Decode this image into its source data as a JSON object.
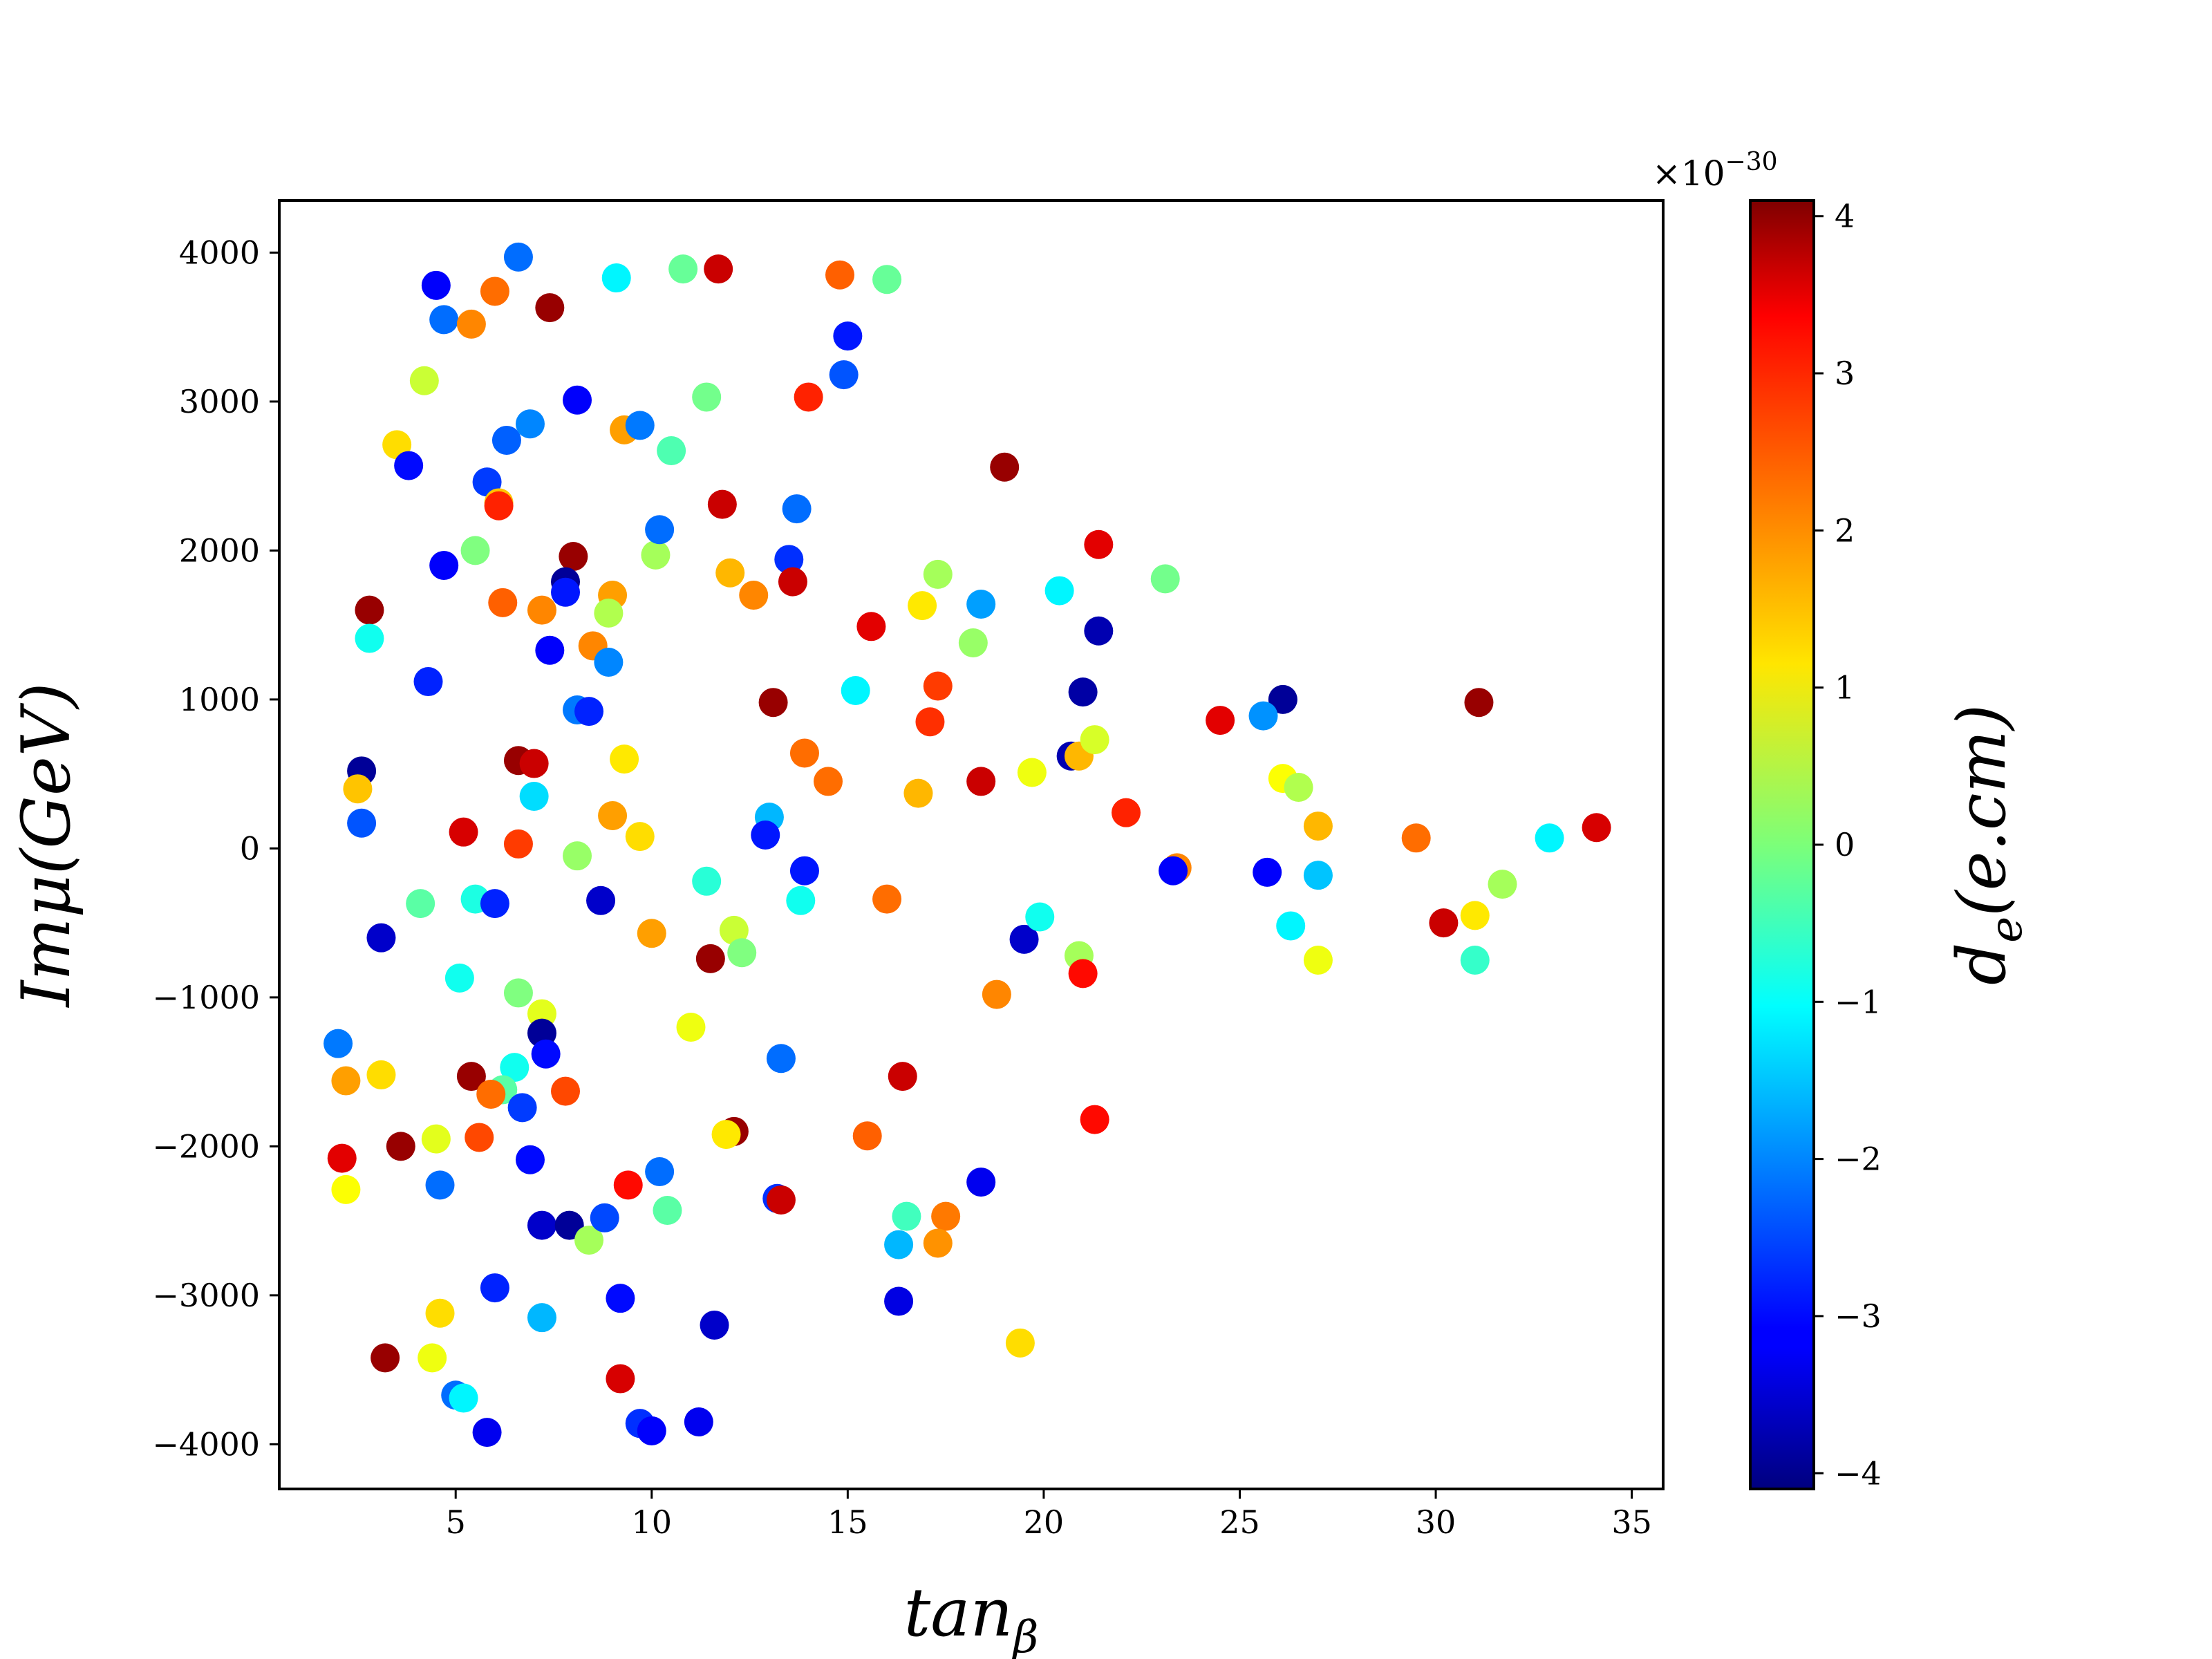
{
  "chart_data": {
    "type": "scatter",
    "title": "",
    "xlabel": "tan_β",
    "xlabel_parts": {
      "main": "tan",
      "sub": "β"
    },
    "ylabel": "Imμ(GeV)",
    "xlim": [
      0.5,
      35.8
    ],
    "ylim": [
      -4300,
      4350
    ],
    "xticks": [
      5,
      10,
      15,
      20,
      25,
      30,
      35
    ],
    "xtick_labels": [
      "5",
      "10",
      "15",
      "20",
      "25",
      "30",
      "35"
    ],
    "yticks": [
      4000,
      3000,
      2000,
      1000,
      0,
      -1000,
      -2000,
      -3000,
      -4000
    ],
    "ytick_labels": [
      "4000",
      "3000",
      "2000",
      "1000",
      "0",
      "−1000",
      "−2000",
      "−3000",
      "−4000"
    ],
    "grid": false,
    "legend": "none",
    "colorbar": {
      "label": "d_e(e.cm)",
      "label_parts": {
        "main": "d",
        "sub": "e",
        "rest": "(e.cm)"
      },
      "colormap": "jet",
      "range": [
        -4.1,
        4.1
      ],
      "ticks": [
        4,
        3,
        2,
        1,
        0,
        -1,
        -2,
        -3,
        -4
      ],
      "tick_labels": [
        "4",
        "3",
        "2",
        "1",
        "0",
        "−1",
        "−2",
        "−3",
        "−4"
      ],
      "multiplier": "×10−30",
      "multiplier_parts": {
        "base": "×10",
        "exp": "−30"
      }
    },
    "points": [
      {
        "x": 4.5,
        "y": 3780,
        "c": -3.1
      },
      {
        "x": 6.6,
        "y": 3970,
        "c": -2.2
      },
      {
        "x": 4.7,
        "y": 3550,
        "c": -2.2
      },
      {
        "x": 5.4,
        "y": 3520,
        "c": 2.0
      },
      {
        "x": 6.0,
        "y": 3740,
        "c": 2.2
      },
      {
        "x": 7.4,
        "y": 3630,
        "c": 3.9
      },
      {
        "x": 9.1,
        "y": 3830,
        "c": -1.1
      },
      {
        "x": 10.8,
        "y": 3890,
        "c": -0.2
      },
      {
        "x": 11.7,
        "y": 3890,
        "c": 3.5
      },
      {
        "x": 14.8,
        "y": 3850,
        "c": 2.3
      },
      {
        "x": 16.0,
        "y": 3820,
        "c": -0.2
      },
      {
        "x": 15.0,
        "y": 3440,
        "c": -2.9
      },
      {
        "x": 14.9,
        "y": 3180,
        "c": -2.4
      },
      {
        "x": 4.2,
        "y": 3140,
        "c": 0.6
      },
      {
        "x": 8.1,
        "y": 3010,
        "c": -3.1
      },
      {
        "x": 11.4,
        "y": 3030,
        "c": -0.1
      },
      {
        "x": 14.0,
        "y": 3030,
        "c": 2.8
      },
      {
        "x": 3.5,
        "y": 2710,
        "c": 1.3
      },
      {
        "x": 6.3,
        "y": 2740,
        "c": -2.3
      },
      {
        "x": 6.9,
        "y": 2850,
        "c": -2.0
      },
      {
        "x": 9.3,
        "y": 2810,
        "c": 1.8
      },
      {
        "x": 9.7,
        "y": 2840,
        "c": -2.1
      },
      {
        "x": 10.5,
        "y": 2670,
        "c": -0.4
      },
      {
        "x": 3.8,
        "y": 2570,
        "c": -3.0
      },
      {
        "x": 19.0,
        "y": 2560,
        "c": 3.9
      },
      {
        "x": 5.8,
        "y": 2460,
        "c": -2.6
      },
      {
        "x": 6.1,
        "y": 2320,
        "c": 1.5
      },
      {
        "x": 6.1,
        "y": 2300,
        "c": 2.8
      },
      {
        "x": 11.8,
        "y": 2310,
        "c": 3.5
      },
      {
        "x": 13.7,
        "y": 2280,
        "c": -2.2
      },
      {
        "x": 5.5,
        "y": 2000,
        "c": 0.0
      },
      {
        "x": 4.7,
        "y": 1900,
        "c": -3.1
      },
      {
        "x": 8.0,
        "y": 1960,
        "c": 3.9
      },
      {
        "x": 10.1,
        "y": 1970,
        "c": 0.3
      },
      {
        "x": 10.2,
        "y": 2140,
        "c": -2.2
      },
      {
        "x": 12.0,
        "y": 1850,
        "c": 1.6
      },
      {
        "x": 13.5,
        "y": 1940,
        "c": -2.7
      },
      {
        "x": 17.3,
        "y": 1840,
        "c": 0.3
      },
      {
        "x": 21.4,
        "y": 2040,
        "c": 3.3
      },
      {
        "x": 23.1,
        "y": 1810,
        "c": -0.1
      },
      {
        "x": 7.8,
        "y": 1790,
        "c": -3.9
      },
      {
        "x": 7.8,
        "y": 1720,
        "c": -2.9
      },
      {
        "x": 9.0,
        "y": 1700,
        "c": 1.8
      },
      {
        "x": 12.6,
        "y": 1700,
        "c": 2.0
      },
      {
        "x": 13.6,
        "y": 1790,
        "c": 3.5
      },
      {
        "x": 20.4,
        "y": 1730,
        "c": -1.1
      },
      {
        "x": 2.8,
        "y": 1600,
        "c": 3.9
      },
      {
        "x": 6.2,
        "y": 1650,
        "c": 2.3
      },
      {
        "x": 7.2,
        "y": 1600,
        "c": 2.0
      },
      {
        "x": 8.9,
        "y": 1580,
        "c": 0.4
      },
      {
        "x": 15.6,
        "y": 1490,
        "c": 3.3
      },
      {
        "x": 16.9,
        "y": 1630,
        "c": 1.2
      },
      {
        "x": 18.4,
        "y": 1640,
        "c": -1.8
      },
      {
        "x": 2.8,
        "y": 1410,
        "c": -0.9
      },
      {
        "x": 7.4,
        "y": 1330,
        "c": -3.1
      },
      {
        "x": 8.5,
        "y": 1360,
        "c": 2.0
      },
      {
        "x": 8.9,
        "y": 1250,
        "c": -2.0
      },
      {
        "x": 18.2,
        "y": 1380,
        "c": 0.2
      },
      {
        "x": 21.4,
        "y": 1460,
        "c": -3.7
      },
      {
        "x": 4.3,
        "y": 1120,
        "c": -2.8
      },
      {
        "x": 8.1,
        "y": 930,
        "c": -2.1
      },
      {
        "x": 8.4,
        "y": 920,
        "c": -2.8
      },
      {
        "x": 13.1,
        "y": 980,
        "c": 3.9
      },
      {
        "x": 15.2,
        "y": 1060,
        "c": -1.1
      },
      {
        "x": 17.3,
        "y": 1090,
        "c": 2.6
      },
      {
        "x": 21.0,
        "y": 1050,
        "c": -3.8
      },
      {
        "x": 26.1,
        "y": 1000,
        "c": -3.9
      },
      {
        "x": 31.1,
        "y": 980,
        "c": 3.9
      },
      {
        "x": 25.6,
        "y": 890,
        "c": -1.9
      },
      {
        "x": 24.5,
        "y": 860,
        "c": 3.3
      },
      {
        "x": 17.1,
        "y": 850,
        "c": 2.7
      },
      {
        "x": 2.6,
        "y": 520,
        "c": -3.9
      },
      {
        "x": 6.6,
        "y": 590,
        "c": 3.9
      },
      {
        "x": 7.0,
        "y": 570,
        "c": 3.5
      },
      {
        "x": 9.3,
        "y": 600,
        "c": 1.2
      },
      {
        "x": 13.9,
        "y": 640,
        "c": 2.2
      },
      {
        "x": 19.7,
        "y": 510,
        "c": 0.9
      },
      {
        "x": 20.7,
        "y": 620,
        "c": -3.7
      },
      {
        "x": 20.9,
        "y": 620,
        "c": 1.6
      },
      {
        "x": 21.3,
        "y": 730,
        "c": 0.7
      },
      {
        "x": 2.5,
        "y": 400,
        "c": 1.5
      },
      {
        "x": 7.0,
        "y": 350,
        "c": -1.3
      },
      {
        "x": 14.5,
        "y": 450,
        "c": 2.2
      },
      {
        "x": 16.8,
        "y": 370,
        "c": 1.6
      },
      {
        "x": 18.4,
        "y": 450,
        "c": 3.5
      },
      {
        "x": 26.1,
        "y": 470,
        "c": 1.0
      },
      {
        "x": 26.5,
        "y": 410,
        "c": 0.4
      },
      {
        "x": 2.6,
        "y": 170,
        "c": -2.4
      },
      {
        "x": 5.2,
        "y": 110,
        "c": 3.4
      },
      {
        "x": 6.6,
        "y": 30,
        "c": 2.6
      },
      {
        "x": 9.0,
        "y": 220,
        "c": 1.8
      },
      {
        "x": 9.7,
        "y": 80,
        "c": 1.3
      },
      {
        "x": 13.0,
        "y": 210,
        "c": -1.6
      },
      {
        "x": 12.9,
        "y": 90,
        "c": -2.9
      },
      {
        "x": 22.1,
        "y": 240,
        "c": 2.8
      },
      {
        "x": 27.0,
        "y": 150,
        "c": 1.6
      },
      {
        "x": 29.5,
        "y": 70,
        "c": 2.2
      },
      {
        "x": 32.9,
        "y": 70,
        "c": -1.1
      },
      {
        "x": 34.1,
        "y": 140,
        "c": 3.4
      },
      {
        "x": 23.4,
        "y": -130,
        "c": 2.0
      },
      {
        "x": 23.3,
        "y": -150,
        "c": -3.1
      },
      {
        "x": 25.7,
        "y": -160,
        "c": -3.1
      },
      {
        "x": 27.0,
        "y": -180,
        "c": -1.5
      },
      {
        "x": 13.9,
        "y": -150,
        "c": -2.9
      },
      {
        "x": 8.1,
        "y": -50,
        "c": 0.2
      },
      {
        "x": 4.1,
        "y": -370,
        "c": -0.3
      },
      {
        "x": 5.5,
        "y": -340,
        "c": -0.8
      },
      {
        "x": 6.0,
        "y": -370,
        "c": -2.8
      },
      {
        "x": 8.7,
        "y": -350,
        "c": -3.5
      },
      {
        "x": 11.4,
        "y": -220,
        "c": -0.7
      },
      {
        "x": 13.8,
        "y": -350,
        "c": -0.9
      },
      {
        "x": 16.0,
        "y": -340,
        "c": 2.2
      },
      {
        "x": 31.7,
        "y": -240,
        "c": 0.3
      },
      {
        "x": 3.1,
        "y": -600,
        "c": -3.5
      },
      {
        "x": 10.0,
        "y": -570,
        "c": 1.8
      },
      {
        "x": 12.1,
        "y": -550,
        "c": 0.6
      },
      {
        "x": 12.3,
        "y": -700,
        "c": 0.0
      },
      {
        "x": 11.5,
        "y": -740,
        "c": 3.9
      },
      {
        "x": 19.5,
        "y": -610,
        "c": -3.5
      },
      {
        "x": 19.9,
        "y": -460,
        "c": -0.9
      },
      {
        "x": 20.9,
        "y": -720,
        "c": 0.3
      },
      {
        "x": 21.0,
        "y": -840,
        "c": 3.0
      },
      {
        "x": 26.3,
        "y": -520,
        "c": -1.1
      },
      {
        "x": 27.0,
        "y": -750,
        "c": 0.9
      },
      {
        "x": 30.2,
        "y": -500,
        "c": 3.5
      },
      {
        "x": 31.0,
        "y": -450,
        "c": 1.2
      },
      {
        "x": 31.0,
        "y": -750,
        "c": -0.6
      },
      {
        "x": 5.1,
        "y": -870,
        "c": -0.9
      },
      {
        "x": 6.6,
        "y": -970,
        "c": 0.0
      },
      {
        "x": 18.8,
        "y": -980,
        "c": 2.0
      },
      {
        "x": 7.2,
        "y": -1110,
        "c": 0.8
      },
      {
        "x": 11.0,
        "y": -1200,
        "c": 0.9
      },
      {
        "x": 2.0,
        "y": -1310,
        "c": -2.1
      },
      {
        "x": 7.2,
        "y": -1240,
        "c": -3.9
      },
      {
        "x": 7.3,
        "y": -1380,
        "c": -3.0
      },
      {
        "x": 13.3,
        "y": -1410,
        "c": -2.2
      },
      {
        "x": 2.2,
        "y": -1560,
        "c": 1.8
      },
      {
        "x": 3.1,
        "y": -1520,
        "c": 1.3
      },
      {
        "x": 5.4,
        "y": -1530,
        "c": 3.9
      },
      {
        "x": 6.5,
        "y": -1470,
        "c": -0.9
      },
      {
        "x": 6.2,
        "y": -1620,
        "c": -0.3
      },
      {
        "x": 5.9,
        "y": -1650,
        "c": 2.2
      },
      {
        "x": 6.7,
        "y": -1740,
        "c": -2.6
      },
      {
        "x": 7.8,
        "y": -1630,
        "c": 2.5
      },
      {
        "x": 16.4,
        "y": -1530,
        "c": 3.5
      },
      {
        "x": 21.3,
        "y": -1820,
        "c": 3.0
      },
      {
        "x": 2.1,
        "y": -2080,
        "c": 3.3
      },
      {
        "x": 3.6,
        "y": -2000,
        "c": 3.9
      },
      {
        "x": 4.5,
        "y": -1950,
        "c": 0.8
      },
      {
        "x": 5.6,
        "y": -1940,
        "c": 2.5
      },
      {
        "x": 6.9,
        "y": -2090,
        "c": -3.0
      },
      {
        "x": 12.1,
        "y": -1900,
        "c": 3.9
      },
      {
        "x": 11.9,
        "y": -1920,
        "c": 1.2
      },
      {
        "x": 15.5,
        "y": -1930,
        "c": 2.3
      },
      {
        "x": 2.2,
        "y": -2290,
        "c": 1.0
      },
      {
        "x": 4.6,
        "y": -2260,
        "c": -2.2
      },
      {
        "x": 9.4,
        "y": -2260,
        "c": 3.0
      },
      {
        "x": 10.2,
        "y": -2170,
        "c": -2.2
      },
      {
        "x": 13.2,
        "y": -2350,
        "c": -2.7
      },
      {
        "x": 13.3,
        "y": -2360,
        "c": 3.5
      },
      {
        "x": 18.4,
        "y": -2240,
        "c": -3.2
      },
      {
        "x": 7.2,
        "y": -2530,
        "c": -3.5
      },
      {
        "x": 7.9,
        "y": -2530,
        "c": -3.9
      },
      {
        "x": 8.4,
        "y": -2630,
        "c": 0.3
      },
      {
        "x": 8.8,
        "y": -2480,
        "c": -2.5
      },
      {
        "x": 10.4,
        "y": -2430,
        "c": -0.3
      },
      {
        "x": 16.5,
        "y": -2470,
        "c": -0.5
      },
      {
        "x": 17.5,
        "y": -2470,
        "c": 2.1
      },
      {
        "x": 16.3,
        "y": -2660,
        "c": -1.6
      },
      {
        "x": 17.3,
        "y": -2650,
        "c": 1.9
      },
      {
        "x": 6.0,
        "y": -2950,
        "c": -2.8
      },
      {
        "x": 9.2,
        "y": -3020,
        "c": -3.0
      },
      {
        "x": 16.3,
        "y": -3040,
        "c": -3.3
      },
      {
        "x": 4.6,
        "y": -3120,
        "c": 1.3
      },
      {
        "x": 7.2,
        "y": -3150,
        "c": -1.6
      },
      {
        "x": 11.6,
        "y": -3200,
        "c": -3.5
      },
      {
        "x": 19.4,
        "y": -3320,
        "c": 1.3
      },
      {
        "x": 3.2,
        "y": -3420,
        "c": 3.9
      },
      {
        "x": 4.4,
        "y": -3420,
        "c": 0.9
      },
      {
        "x": 9.2,
        "y": -3560,
        "c": 3.4
      },
      {
        "x": 5.0,
        "y": -3670,
        "c": -2.2
      },
      {
        "x": 5.2,
        "y": -3690,
        "c": -1.1
      },
      {
        "x": 5.8,
        "y": -3920,
        "c": -3.2
      },
      {
        "x": 9.7,
        "y": -3860,
        "c": -2.7
      },
      {
        "x": 10.0,
        "y": -3910,
        "c": -3.1
      },
      {
        "x": 11.2,
        "y": -3850,
        "c": -3.2
      }
    ]
  }
}
